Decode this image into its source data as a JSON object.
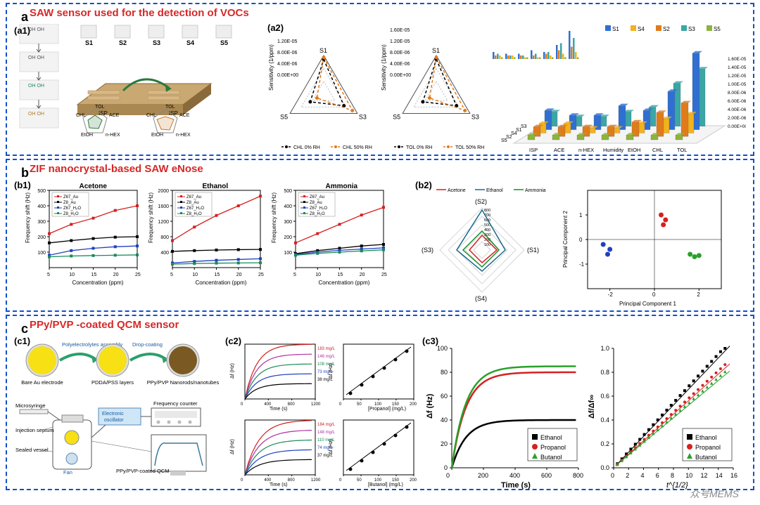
{
  "a": {
    "title": "SAW sensor used for the detection of VOCs",
    "sub1": "(a1)",
    "sub2": "(a2)",
    "schematic": {
      "slabels": [
        "S1",
        "S2",
        "S3",
        "S4",
        "S5"
      ],
      "device_labels": [
        "ISP",
        "ISP"
      ],
      "radar_labels": [
        "ACE",
        "n-HEX",
        "EtOH",
        "CHL",
        "TOL"
      ]
    },
    "a2": {
      "radar_left": {
        "ylabel": "Sensitivity (1/ppm)",
        "ticks": [
          "0.00E+00",
          "4.00E-06",
          "8.00E-06",
          "1.20E-05"
        ],
        "vertices": [
          "S1",
          "S3",
          "S5"
        ],
        "legend": [
          "CHL 0% RH",
          "CHL 50% RH"
        ],
        "colors": [
          "#000000",
          "#e07b1a"
        ]
      },
      "radar_right": {
        "ylabel": "Sensitivity (1/ppm)",
        "ticks": [
          "0.00E+00",
          "4.00E-06",
          "8.00E-06",
          "1.20E-05",
          "1.60E-05"
        ],
        "vertices": [
          "S1",
          "S3",
          "S5"
        ],
        "legend": [
          "TOL 0% RH",
          "TOL 50% RH"
        ],
        "colors": [
          "#000000",
          "#e07b1a"
        ]
      },
      "bar3d": {
        "legend": [
          "S1",
          "S4",
          "S2",
          "S3",
          "S5"
        ],
        "legend_colors": [
          "#2f6fd1",
          "#f3b21b",
          "#e07b1a",
          "#3aa6a6",
          "#8db43a"
        ],
        "x_cats": [
          "ISP",
          "ACE",
          "n-HEX",
          "Humidity",
          "EtOH",
          "CHL",
          "TOL"
        ],
        "z_side": [
          "S5",
          "S2",
          "S4",
          "S1",
          "S3"
        ],
        "ylabel": "Sensitivity (1/ppm)",
        "yticks": [
          "0.00E+00",
          "2.00E-06",
          "4.00E-06",
          "6.00E-06",
          "8.00E-06",
          "1.00E-05",
          "1.20E-05",
          "1.40E-05",
          "1.60E-05"
        ],
        "colors": {
          "S1": "#2f6fd1",
          "S2": "#e07b1a",
          "S3": "#3aa6a6",
          "S4": "#f3b21b",
          "S5": "#8db43a"
        },
        "data": {
          "ISP": [
            4,
            2,
            3,
            2,
            1
          ],
          "ACE": [
            3,
            2,
            2,
            2,
            1
          ],
          "n-HEX": [
            3,
            2,
            2,
            1,
            1
          ],
          "Humidity": [
            5,
            2,
            3,
            1,
            1
          ],
          "EtOH": [
            4,
            3,
            4,
            2,
            1
          ],
          "CHL": [
            8,
            5,
            9,
            3,
            1
          ],
          "TOL": [
            16,
            7,
            12,
            4,
            1
          ]
        }
      }
    }
  },
  "b": {
    "title": "ZIF nanocrystal-based SAW eNose",
    "sub1": "(b1)",
    "sub2": "(b2)",
    "charts": [
      {
        "title": "Acetone",
        "ymax": 500,
        "yticks": [
          100,
          200,
          300,
          400,
          500
        ],
        "series": [
          {
            "name": "Z67_Au",
            "color": "#d62020",
            "vals": [
              220,
              280,
              320,
              370,
              400
            ]
          },
          {
            "name": "Z8_Au",
            "color": "#000000",
            "vals": [
              160,
              175,
              188,
              197,
              200
            ]
          },
          {
            "name": "Z67_H₂O",
            "color": "#2040c0",
            "vals": [
              80,
              110,
              125,
              135,
              140
            ]
          },
          {
            "name": "Z8_H₂O",
            "color": "#1a8a5a",
            "vals": [
              70,
              75,
              78,
              80,
              82
            ]
          }
        ]
      },
      {
        "title": "Ethanol",
        "ymax": 2000,
        "yticks": [
          400,
          800,
          1200,
          1600,
          2000
        ],
        "series": [
          {
            "name": "Z67_Au",
            "color": "#d62020",
            "vals": [
              700,
              1050,
              1350,
              1600,
              1850
            ]
          },
          {
            "name": "Z8_Au",
            "color": "#000000",
            "vals": [
              420,
              440,
              455,
              465,
              470
            ]
          },
          {
            "name": "Z67_H₂O",
            "color": "#2040c0",
            "vals": [
              120,
              160,
              190,
              210,
              230
            ]
          },
          {
            "name": "Z8_H₂O",
            "color": "#1a8a5a",
            "vals": [
              90,
              105,
              115,
              120,
              125
            ]
          }
        ]
      },
      {
        "title": "Ammonia",
        "ymax": 500,
        "yticks": [
          100,
          200,
          300,
          400,
          500
        ],
        "series": [
          {
            "name": "Z67_Au",
            "color": "#d62020",
            "vals": [
              160,
              220,
              280,
              340,
              390
            ]
          },
          {
            "name": "Z8_Au",
            "color": "#000000",
            "vals": [
              90,
              110,
              125,
              140,
              150
            ]
          },
          {
            "name": "Z67_H₂O",
            "color": "#2040c0",
            "vals": [
              85,
              100,
              112,
              120,
              128
            ]
          },
          {
            "name": "Z8_H₂O",
            "color": "#1a8a5a",
            "vals": [
              80,
              92,
              100,
              108,
              115
            ]
          }
        ]
      }
    ],
    "xlabel": "Concentration (ppm)",
    "xticks": [
      5,
      10,
      15,
      20,
      25
    ],
    "ylabel": "Frequency shift (Hz)",
    "radar": {
      "legend": [
        "Acetone",
        "Ethanol",
        "Ammonia"
      ],
      "colors": [
        "#d62020",
        "#1a6a8a",
        "#1a8a2a"
      ],
      "vertices": [
        "(S2)",
        "(S1)",
        "(S4)",
        "(S3)"
      ],
      "rticks": [
        100,
        200,
        300,
        400,
        500,
        600,
        700,
        800
      ]
    },
    "pca": {
      "xlabel": "Principal Component 1",
      "ylabel": "Principal Component 2",
      "xlim": [
        -3,
        3
      ],
      "ylim": [
        -2,
        2
      ],
      "points": [
        {
          "c": "#2040c0",
          "pts": [
            [
              -2.3,
              -0.2
            ],
            [
              -2.1,
              -0.6
            ],
            [
              -2.0,
              -0.4
            ]
          ]
        },
        {
          "c": "#d62020",
          "pts": [
            [
              0.3,
              1.0
            ],
            [
              0.4,
              0.6
            ],
            [
              0.5,
              0.8
            ]
          ]
        },
        {
          "c": "#2aa02a",
          "pts": [
            [
              1.6,
              -0.6
            ],
            [
              1.8,
              -0.7
            ],
            [
              2.0,
              -0.65
            ]
          ]
        }
      ]
    }
  },
  "c": {
    "title": "PPy/PVP -coated QCM sensor",
    "sub1": "(c1)",
    "sub2": "(c2)",
    "sub3": "(c3)",
    "c1": {
      "top_labels": [
        "Polyelectrolytes assembly",
        "Drop-coating"
      ],
      "bottom_labels": [
        "Bare Au electrode",
        "PDDA/PSS layers",
        "PPy/PVP Nanorods/nanotubes"
      ],
      "setup_labels": [
        "Microsyringe",
        "Injection septum",
        "Sealed vessel",
        "Electronic oscillator",
        "Frequency counter",
        "Fan",
        "PPy/PVP-coated QCM"
      ],
      "colors": {
        "au": "#f7e014",
        "pvp": "#7a5a22",
        "arrow": "#2aa06a",
        "osc_bg": "#cfe6f7",
        "osc_text": "#1a5aa0"
      }
    },
    "c2": {
      "top_left": {
        "ylabel": "Δf (Hz)",
        "xlabel": "Time (s)",
        "xticks": [
          0,
          400,
          800,
          1200
        ],
        "series": [
          {
            "label": "183 mg/L",
            "color": "#d62020"
          },
          {
            "label": "146 mg/L",
            "color": "#b030a0"
          },
          {
            "label": "108 mg/L",
            "color": "#1a8a5a"
          },
          {
            "label": "73 mg/L",
            "color": "#2040c0"
          },
          {
            "label": "38 mg/L",
            "color": "#000000"
          }
        ]
      },
      "top_right": {
        "ylabel": "Δf (Hz)",
        "xlabel": "[Propanol] (mg/L)",
        "xticks": [
          0,
          50,
          100,
          150,
          200
        ],
        "yticks": [
          0,
          20,
          40,
          60,
          80,
          100
        ]
      },
      "bot_left": {
        "ylabel": "Δf (Hz)",
        "xlabel": "Time (s)",
        "xticks": [
          0,
          400,
          800,
          1200
        ],
        "series": [
          {
            "label": "184 mg/L",
            "color": "#d62020"
          },
          {
            "label": "148 mg/L",
            "color": "#b030a0"
          },
          {
            "label": "110 mg/L",
            "color": "#1a8a5a"
          },
          {
            "label": "74 mg/L",
            "color": "#2040c0"
          },
          {
            "label": "37 mg/L",
            "color": "#000000"
          }
        ]
      },
      "bot_right": {
        "ylabel": "Δf (Hz)",
        "xlabel": "[Butanol] (mg/L)",
        "xticks": [
          0,
          50,
          100,
          150,
          200
        ],
        "yticks": [
          0,
          20,
          40,
          60,
          80
        ]
      }
    },
    "c3": {
      "left": {
        "ylabel": "Δf (Hz)",
        "xlabel": "Time (s)",
        "xticks": [
          0,
          200,
          400,
          600,
          800
        ],
        "yticks": [
          0,
          20,
          40,
          60,
          80,
          100
        ],
        "series": [
          {
            "name": "Ethanol",
            "color": "#000000",
            "marker": "square",
            "plateau": 40
          },
          {
            "name": "Propanol",
            "color": "#d62020",
            "marker": "circle",
            "plateau": 80
          },
          {
            "name": "Butanol",
            "color": "#2aa02a",
            "marker": "triangle",
            "plateau": 85
          }
        ]
      },
      "right": {
        "ylabel": "Δf/Δf∞",
        "xlabel": "t¹ᐟ²",
        "xticks": [
          0,
          2,
          4,
          6,
          8,
          10,
          12,
          14,
          16
        ],
        "yticks": [
          0.0,
          0.2,
          0.4,
          0.6,
          0.8,
          1.0
        ],
        "series": [
          {
            "name": "Ethanol",
            "color": "#000000",
            "marker": "square"
          },
          {
            "name": "Propanol",
            "color": "#d62020",
            "marker": "circle"
          },
          {
            "name": "Butanol",
            "color": "#2aa02a",
            "marker": "triangle"
          }
        ]
      }
    }
  },
  "watermark": "众号MEMS"
}
